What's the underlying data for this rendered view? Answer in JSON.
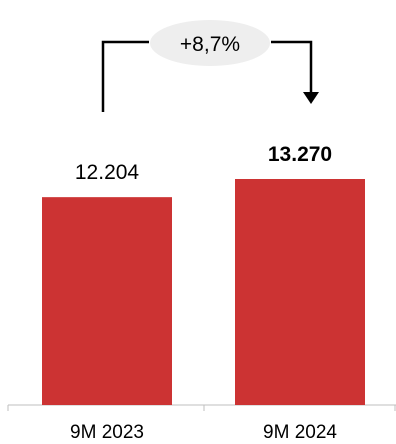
{
  "chart_data": {
    "type": "bar",
    "categories": [
      "9M 2023",
      "9M 2024"
    ],
    "values": [
      12204,
      13270
    ],
    "value_labels": [
      "12.204",
      "13.270"
    ],
    "highlight_last_label_bold": true,
    "ylim": [
      0,
      13270
    ],
    "bar_color": "#cc3333",
    "axis_color": "#bfbfbf",
    "annotation": {
      "text": "+8,7%",
      "bubble_color": "#eeeeee",
      "arrow_color": "#000000"
    }
  }
}
